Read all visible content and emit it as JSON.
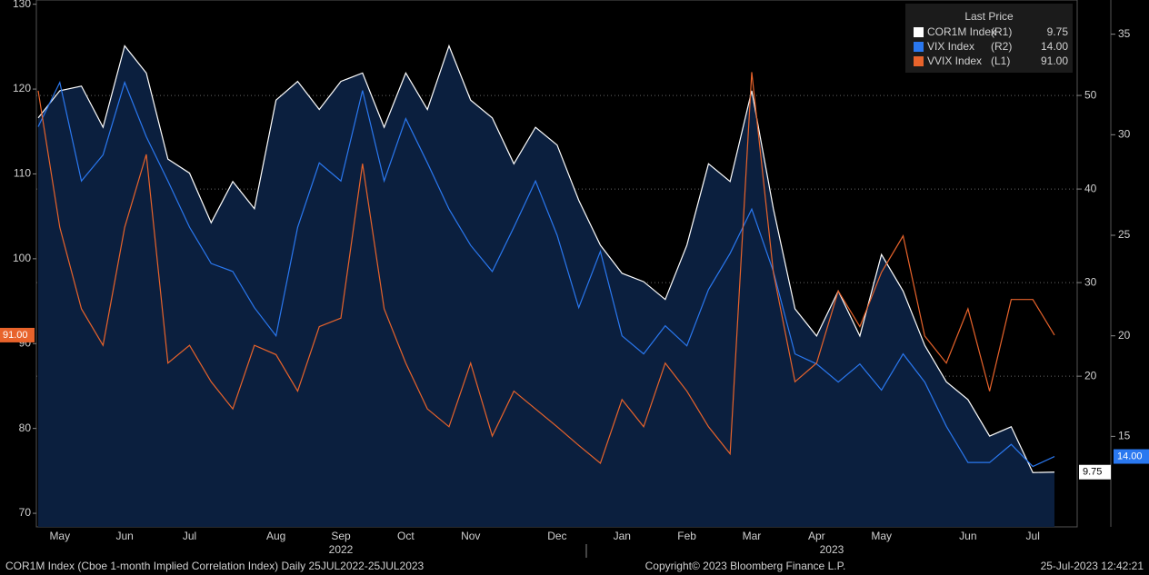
{
  "chart_data": {
    "type": "line",
    "categories": [
      null,
      "May",
      null,
      null,
      "Jun",
      null,
      null,
      "Jul",
      null,
      null,
      null,
      "Aug",
      null,
      null,
      "Sep",
      null,
      null,
      "Oct",
      null,
      null,
      "Nov",
      null,
      null,
      null,
      "Dec",
      null,
      null,
      "Jan",
      null,
      null,
      "Feb",
      null,
      null,
      "Mar",
      null,
      null,
      "Apr",
      null,
      null,
      "May",
      null,
      null,
      null,
      "Jun",
      null,
      null,
      "Jul",
      null
    ],
    "year_labels": [
      "2022",
      "2023"
    ],
    "legend_title": "Last Price",
    "ylim": [
      68.4,
      130.5
    ],
    "yticks": [
      70,
      80,
      90,
      100,
      110,
      120,
      130
    ],
    "y2lim": [
      3.9,
      60.2
    ],
    "y2ticks": [
      20,
      30,
      40,
      50
    ],
    "y3lim": [
      10.5,
      36.7
    ],
    "y3ticks": [
      15,
      20,
      25,
      30,
      35
    ],
    "grid": true,
    "series": [
      {
        "name": "COR1M Index",
        "axis_label": "(R1)",
        "last_label": "9.75",
        "color": "#ffffff",
        "axis": "y2",
        "fill": "#0b1f3e",
        "values": [
          47.6,
          50.5,
          51,
          46.6,
          55.3,
          52.4,
          43.2,
          41.7,
          36.4,
          40.8,
          37.9,
          49.5,
          51.5,
          48.5,
          51.5,
          52.4,
          46.6,
          52.4,
          48.5,
          55.3,
          49.5,
          47.6,
          42.7,
          46.6,
          44.7,
          38.8,
          34,
          31,
          30.1,
          28.2,
          34,
          42.7,
          40.8,
          50.5,
          37.9,
          27.2,
          24.3,
          29.1,
          24.3,
          33,
          29.1,
          23.3,
          19.4,
          17.5,
          13.6,
          14.6,
          9.7,
          9.75
        ]
      },
      {
        "name": "VIX Index",
        "axis_label": "(R2)",
        "last_label": "14.00",
        "color": "#2a78f0",
        "axis": "y3",
        "values": [
          30.4,
          32.6,
          27.7,
          29,
          32.6,
          29.9,
          27.7,
          25.4,
          23.6,
          23.2,
          21.4,
          20,
          25.4,
          28.6,
          27.7,
          32.2,
          27.7,
          30.8,
          28.6,
          26.3,
          24.5,
          23.2,
          25.4,
          27.7,
          25,
          21.4,
          24.2,
          20,
          19.1,
          20.5,
          19.5,
          22.3,
          24.1,
          26.3,
          23.2,
          19.1,
          18.6,
          17.7,
          18.6,
          17.3,
          19.1,
          17.7,
          15.5,
          13.7,
          13.7,
          14.6,
          13.5,
          14
        ]
      },
      {
        "name": "VVIX Index",
        "axis_label": "(L1)",
        "last_label": "91.00",
        "color": "#e8632b",
        "axis": "y",
        "values": [
          119.8,
          103.7,
          94.1,
          89.8,
          103.7,
          112.3,
          87.7,
          89.8,
          85.5,
          82.3,
          89.8,
          88.7,
          84.4,
          92,
          93,
          111.2,
          94.1,
          87.7,
          82.3,
          80.2,
          87.7,
          79.1,
          84.4,
          82.3,
          80.2,
          78,
          75.9,
          83.4,
          80.2,
          87.7,
          84.4,
          80.2,
          77,
          122,
          98.4,
          85.5,
          87.7,
          96.2,
          92,
          98.4,
          102.7,
          90.9,
          87.7,
          94.1,
          84.4,
          95.2,
          95.2,
          91
        ]
      }
    ],
    "footer_left": "COR1M Index (Cboe 1-month Implied Correlation Index)  Daily 25JUL2022-25JUL2023",
    "footer_center": "Copyright© 2023 Bloomberg Finance L.P.",
    "footer_right": "25-Jul-2023 12:42:21"
  }
}
